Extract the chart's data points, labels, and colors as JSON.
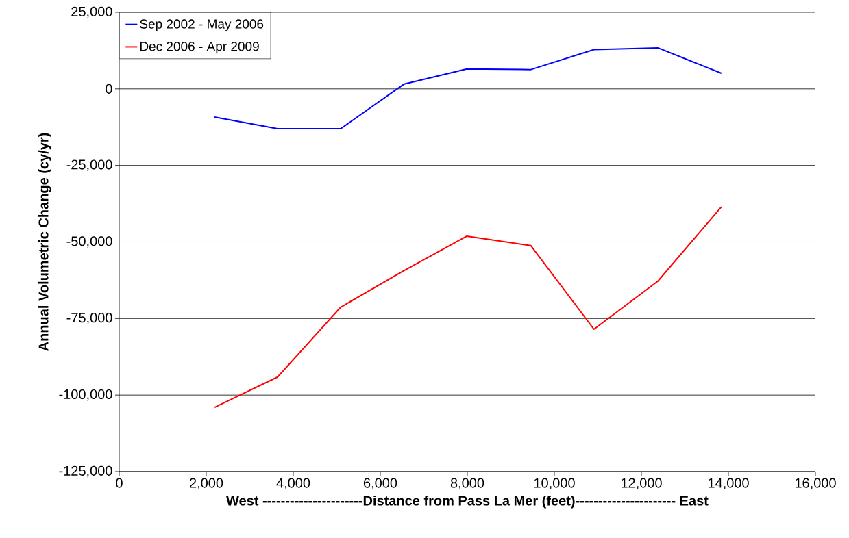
{
  "chart_data": {
    "type": "line",
    "xlabel": "**West ----------------------Distance from Pass La Mer (feet)---------------------- East**",
    "ylabel": "**Annual Volumetric Change (cy/yr)**",
    "x": [
      2190,
      3640,
      5090,
      6550,
      7990,
      9460,
      10910,
      12380,
      13840
    ],
    "series": [
      {
        "name": "Sep 2002 - May 2006",
        "color": "#0000ff",
        "values": [
          -9200,
          -13000,
          -13000,
          1600,
          6500,
          6300,
          12800,
          13400,
          5100
        ]
      },
      {
        "name": "Dec 2006 - Apr 2009",
        "color": "#ff0000",
        "values": [
          -104000,
          -94100,
          -71300,
          -59300,
          -48100,
          -51200,
          -78500,
          -62800,
          -38500
        ]
      }
    ],
    "xlim": [
      0,
      16000
    ],
    "ylim": [
      -125000,
      25000
    ],
    "xticks": [
      {
        "value": 0,
        "label": "0"
      },
      {
        "value": 2000,
        "label": "2,000"
      },
      {
        "value": 4000,
        "label": "4,000"
      },
      {
        "value": 6000,
        "label": "6,000"
      },
      {
        "value": 8000,
        "label": "8,000"
      },
      {
        "value": 10000,
        "label": "10,000"
      },
      {
        "value": 12000,
        "label": "12,000"
      },
      {
        "value": 14000,
        "label": "14,000"
      },
      {
        "value": 16000,
        "label": "16,000"
      }
    ],
    "yticks": [
      {
        "value": -125000,
        "label": "-125,000"
      },
      {
        "value": -100000,
        "label": "-100,000"
      },
      {
        "value": -75000,
        "label": "-75,000"
      },
      {
        "value": -50000,
        "label": "-50,000"
      },
      {
        "value": -25000,
        "label": "-25,000"
      },
      {
        "value": 0,
        "label": "0"
      },
      {
        "value": 25000,
        "label": "25,000"
      }
    ],
    "grid": "y",
    "legend": "top left",
    "marker": "none",
    "line_style": "solid"
  }
}
